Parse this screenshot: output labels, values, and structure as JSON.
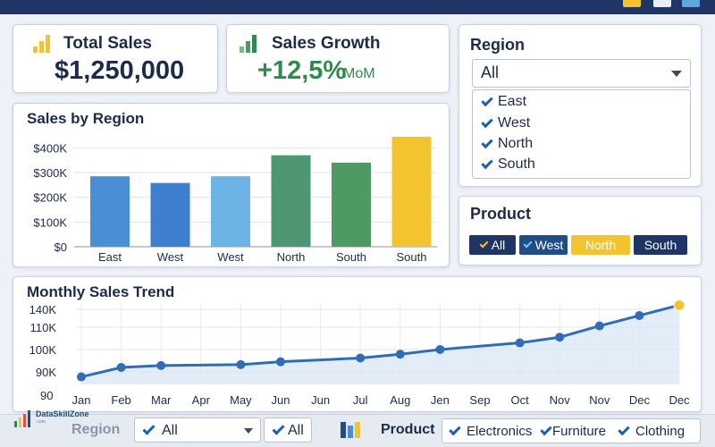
{
  "window": {
    "controls": [
      "minimize-icon",
      "maximize-icon",
      "close-icon"
    ]
  },
  "kpis": {
    "total_sales": {
      "title": "Total Sales",
      "value": "$1,250,000",
      "icon": "bar-chart-icon",
      "color": "#f4c430"
    },
    "sales_growth": {
      "title": "Sales Growth",
      "value": "+12,5%",
      "unit": "MoM",
      "icon": "growth-bars-icon",
      "color": "#2f8a4d"
    }
  },
  "region_filter": {
    "title": "Region",
    "selected": "All",
    "options": [
      {
        "label": "East",
        "checked": true
      },
      {
        "label": "West",
        "checked": true
      },
      {
        "label": "North",
        "checked": true
      },
      {
        "label": "South",
        "checked": true
      }
    ]
  },
  "product_filter": {
    "title": "Product",
    "chips": [
      {
        "label": "All",
        "checked": true,
        "style": "navy"
      },
      {
        "label": "West",
        "checked": true,
        "style": "blue"
      },
      {
        "label": "North",
        "checked": false,
        "style": "yellow"
      },
      {
        "label": "South",
        "checked": false,
        "style": "navy"
      }
    ]
  },
  "chart_data": [
    {
      "type": "bar",
      "title": "Sales by Region",
      "categories": [
        "East",
        "West",
        "West",
        "North",
        "South",
        "South"
      ],
      "values": [
        285000,
        258000,
        285000,
        370000,
        340000,
        445000
      ],
      "colors": [
        "#4a8fd6",
        "#3f7fcf",
        "#6cb3e6",
        "#4f9673",
        "#4e9a63",
        "#f4c430"
      ],
      "yticks": [
        "$0",
        "$100K",
        "$200K",
        "$300K",
        "$400K"
      ],
      "ylim": [
        0,
        470000
      ],
      "grid": true
    },
    {
      "type": "line",
      "title": "Monthly Sales Trend",
      "x": [
        "Jan",
        "Feb",
        "Mar",
        "Apr",
        "May",
        "Jun",
        "Jun",
        "Jul",
        "Aug",
        "Jen",
        "Sep",
        "Oct",
        "Nov",
        "Nov",
        "Dec",
        "Dec"
      ],
      "xticks": [
        "Jan",
        "Feb",
        "Mar",
        "Apr",
        "May",
        "Jun",
        "Jun",
        "Jul",
        "Aug",
        "Jen",
        "Sep",
        "Oct",
        "Nov",
        "Nov",
        "Dec",
        "Dec"
      ],
      "points": [
        89,
        94,
        95,
        95.5,
        97,
        99,
        101,
        103.5,
        107,
        110,
        116,
        121.5,
        127
      ],
      "point_xticks": [
        0,
        1,
        2,
        4,
        5,
        7,
        8,
        9,
        11,
        12,
        13,
        14,
        15
      ],
      "yticks": [
        "90",
        "90K",
        "100K",
        "110K",
        "140K"
      ],
      "ylim": [
        85,
        130
      ],
      "color": "#2f6db5",
      "last_point_color": "#f4c430",
      "area": true,
      "grid": true
    }
  ],
  "bottom_bar": {
    "region_label": "Region",
    "region_select": "All",
    "region_select2": "All",
    "product_label": "Product",
    "product_icon": "bar-chart-icon",
    "product_items": [
      "Electronics",
      "Furniture",
      "Clothing"
    ]
  },
  "watermark": {
    "name": "DataSkillZone",
    "sub": ".com"
  }
}
